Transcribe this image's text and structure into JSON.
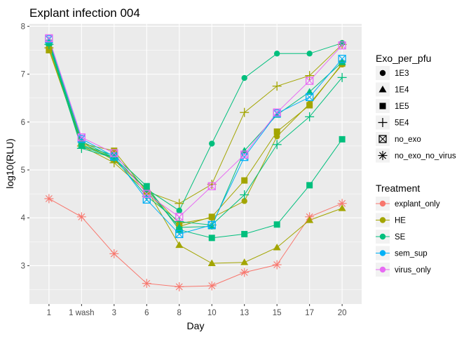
{
  "chart_data": {
    "type": "line",
    "title": "Explant infection 004",
    "xlabel": "Day",
    "ylabel": "log10(RLU)",
    "categories": [
      "1",
      "1 wash",
      "3",
      "6",
      "8",
      "10",
      "13",
      "15",
      "17",
      "20"
    ],
    "ylim": [
      2.2,
      8.05
    ],
    "yticks": [
      3,
      4,
      5,
      6,
      7,
      8
    ],
    "grid": true,
    "legend_position": "right",
    "legends": {
      "shape": {
        "title": "Exo_per_pfu",
        "entries": [
          {
            "label": "1E3",
            "shape": "circle"
          },
          {
            "label": "1E4",
            "shape": "triangle"
          },
          {
            "label": "1E5",
            "shape": "square"
          },
          {
            "label": "5E4",
            "shape": "plus"
          },
          {
            "label": "no_exo",
            "shape": "square-x"
          },
          {
            "label": "no_exo_no_virus",
            "shape": "asterisk"
          }
        ]
      },
      "color": {
        "title": "Treatment",
        "entries": [
          {
            "label": "explant_only",
            "color": "#F8766D"
          },
          {
            "label": "HE",
            "color": "#A3A500"
          },
          {
            "label": "SE",
            "color": "#00BF7D"
          },
          {
            "label": "sem_sup",
            "color": "#00B0F6"
          },
          {
            "label": "virus_only",
            "color": "#E76BF3"
          }
        ]
      }
    },
    "series": [
      {
        "treatment": "explant_only",
        "exo": "no_exo_no_virus",
        "color": "#F8766D",
        "shape": "asterisk",
        "values": [
          4.4,
          4.02,
          3.25,
          2.63,
          2.56,
          2.58,
          2.86,
          3.02,
          4.02,
          4.3
        ]
      },
      {
        "treatment": "HE",
        "exo": "1E3",
        "color": "#A3A500",
        "shape": "circle",
        "values": [
          7.68,
          5.53,
          5.25,
          4.6,
          3.88,
          4.0,
          4.35,
          5.7,
          6.38,
          7.2
        ]
      },
      {
        "treatment": "HE",
        "exo": "1E4",
        "color": "#A3A500",
        "shape": "triangle",
        "values": [
          7.6,
          5.58,
          5.2,
          4.6,
          3.43,
          3.05,
          3.07,
          3.38,
          3.95,
          4.2
        ]
      },
      {
        "treatment": "HE",
        "exo": "1E5",
        "color": "#A3A500",
        "shape": "square",
        "values": [
          7.5,
          5.55,
          5.4,
          4.55,
          3.82,
          4.02,
          4.78,
          5.8,
          6.35,
          7.22
        ]
      },
      {
        "treatment": "HE",
        "exo": "5E4",
        "color": "#A3A500",
        "shape": "plus",
        "values": [
          7.55,
          5.5,
          5.15,
          4.55,
          4.3,
          4.7,
          6.2,
          6.75,
          6.97,
          7.62
        ]
      },
      {
        "treatment": "SE",
        "exo": "1E3",
        "color": "#00BF7D",
        "shape": "circle",
        "values": [
          7.68,
          5.6,
          5.25,
          4.6,
          4.15,
          5.55,
          6.92,
          7.43,
          7.43,
          7.65
        ]
      },
      {
        "treatment": "SE",
        "exo": "1E4",
        "color": "#00BF7D",
        "shape": "triangle",
        "values": [
          7.7,
          5.5,
          5.25,
          4.6,
          3.8,
          3.82,
          5.4,
          6.15,
          6.63,
          7.25
        ]
      },
      {
        "treatment": "SE",
        "exo": "1E5",
        "color": "#00BF7D",
        "shape": "square",
        "values": [
          7.65,
          5.52,
          5.3,
          4.66,
          3.75,
          3.58,
          3.66,
          3.86,
          4.68,
          5.64
        ]
      },
      {
        "treatment": "SE",
        "exo": "5E4",
        "color": "#00BF7D",
        "shape": "plus",
        "values": [
          7.62,
          5.45,
          5.25,
          4.45,
          3.92,
          3.85,
          4.48,
          5.53,
          6.11,
          6.93
        ]
      },
      {
        "treatment": "sem_sup",
        "exo": "no_exo",
        "color": "#00B0F6",
        "shape": "square-x",
        "values": [
          7.73,
          5.65,
          5.28,
          4.38,
          3.66,
          3.85,
          5.27,
          6.18,
          6.52,
          7.32
        ]
      },
      {
        "treatment": "virus_only",
        "exo": "no_exo",
        "color": "#E76BF3",
        "shape": "square-x",
        "values": [
          7.75,
          5.68,
          5.35,
          4.5,
          4.02,
          4.66,
          5.32,
          6.2,
          6.86,
          7.6
        ]
      }
    ]
  }
}
